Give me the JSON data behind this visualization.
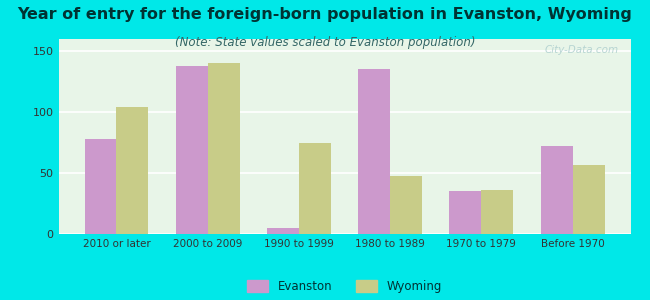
{
  "title": "Year of entry for the foreign-born population in Evanston, Wyoming",
  "subtitle": "(Note: State values scaled to Evanston population)",
  "categories": [
    "2010 or later",
    "2000 to 2009",
    "1990 to 1999",
    "1980 to 1989",
    "1970 to 1979",
    "Before 1970"
  ],
  "evanston": [
    78,
    138,
    5,
    135,
    35,
    72
  ],
  "wyoming": [
    104,
    140,
    75,
    48,
    36,
    57
  ],
  "evanston_color": "#cc99cc",
  "wyoming_color": "#c8cc88",
  "background_outer": "#00e8e8",
  "background_inner": "#e8f5e8",
  "title_fontsize": 11.5,
  "subtitle_fontsize": 8.5,
  "title_color": "#003333",
  "subtitle_color": "#336666",
  "ylim": [
    0,
    160
  ],
  "yticks": [
    0,
    50,
    100,
    150
  ],
  "bar_width": 0.35,
  "legend_evanston": "Evanston",
  "legend_wyoming": "Wyoming",
  "watermark": "City-Data.com"
}
